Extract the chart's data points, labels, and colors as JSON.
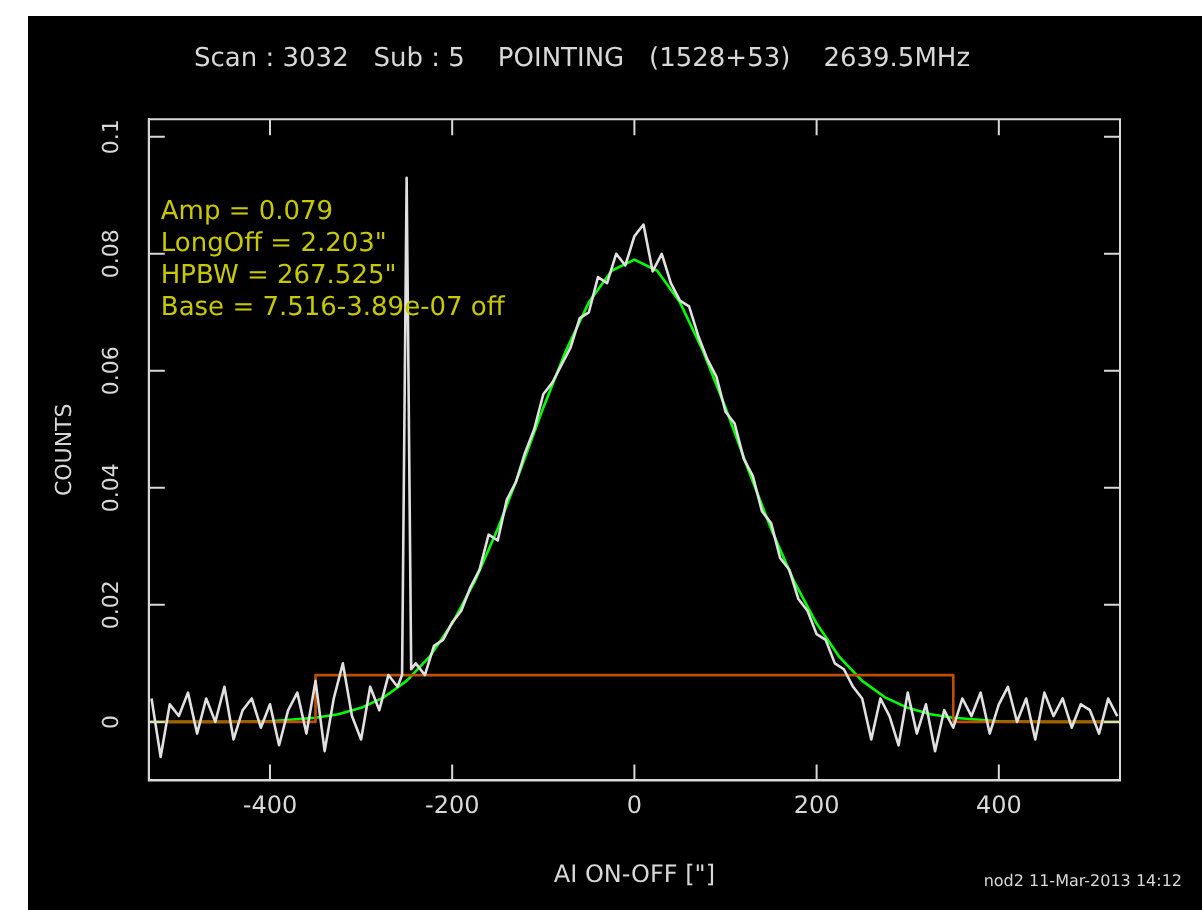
{
  "chart_data": {
    "type": "line",
    "title": "Scan : 3032   Sub : 5    POINTING   (1528+53)    2639.5MHz",
    "xlabel": "AI ON-OFF [\"]",
    "ylabel": "COUNTS",
    "annotations": [
      "Amp = 0.079",
      "LongOff = 2.203\"",
      "HPBW = 267.525\"",
      "Base = 7.516-3.89e-07 off",
      "nod2 11-Mar-2013 14:12"
    ],
    "xlim": [
      -533,
      533
    ],
    "ylim": [
      -0.01,
      0.103
    ],
    "xticks": [
      -400,
      -200,
      0,
      200,
      400
    ],
    "yticks": [
      0,
      0.02,
      0.04,
      0.06,
      0.08,
      0.1
    ],
    "grid": false,
    "legend": false,
    "marker": "none",
    "series": [
      {
        "color": "#e0e0e0",
        "x": [
          -530,
          -520,
          -510,
          -500,
          -490,
          -480,
          -470,
          -460,
          -450,
          -440,
          -430,
          -420,
          -410,
          -400,
          -390,
          -380,
          -370,
          -360,
          -350,
          -340,
          -330,
          -320,
          -310,
          -300,
          -290,
          -280,
          -270,
          -260,
          -255,
          -250,
          -245,
          -240,
          -230,
          -220,
          -210,
          -200,
          -190,
          -180,
          -170,
          -160,
          -150,
          -140,
          -130,
          -120,
          -110,
          -100,
          -90,
          -80,
          -70,
          -60,
          -50,
          -40,
          -30,
          -20,
          -10,
          0,
          10,
          20,
          30,
          40,
          50,
          60,
          70,
          80,
          90,
          100,
          110,
          120,
          130,
          140,
          150,
          160,
          170,
          180,
          190,
          200,
          210,
          220,
          230,
          240,
          250,
          260,
          270,
          280,
          290,
          300,
          310,
          320,
          330,
          340,
          350,
          360,
          370,
          380,
          390,
          400,
          410,
          420,
          430,
          440,
          450,
          460,
          470,
          480,
          490,
          500,
          510,
          520,
          530
        ],
        "values": [
          0.004,
          -0.006,
          0.003,
          0.001,
          0.005,
          -0.002,
          0.004,
          0.0,
          0.006,
          -0.003,
          0.002,
          0.004,
          -0.001,
          0.003,
          -0.004,
          0.002,
          0.005,
          -0.002,
          0.007,
          -0.005,
          0.004,
          0.01,
          0.001,
          -0.003,
          0.006,
          0.002,
          0.008,
          0.006,
          0.008,
          0.093,
          0.009,
          0.01,
          0.008,
          0.013,
          0.014,
          0.017,
          0.019,
          0.023,
          0.026,
          0.032,
          0.031,
          0.038,
          0.041,
          0.046,
          0.05,
          0.056,
          0.058,
          0.061,
          0.064,
          0.069,
          0.07,
          0.076,
          0.075,
          0.08,
          0.078,
          0.083,
          0.085,
          0.077,
          0.08,
          0.075,
          0.072,
          0.071,
          0.066,
          0.062,
          0.059,
          0.053,
          0.051,
          0.045,
          0.042,
          0.036,
          0.034,
          0.028,
          0.026,
          0.021,
          0.019,
          0.015,
          0.014,
          0.01,
          0.009,
          0.006,
          0.004,
          -0.003,
          0.004,
          0.001,
          -0.004,
          0.005,
          -0.002,
          0.003,
          -0.005,
          0.002,
          -0.001,
          0.004,
          0.001,
          0.005,
          -0.002,
          0.003,
          0.006,
          0.0,
          0.004,
          -0.003,
          0.005,
          0.001,
          0.004,
          -0.001,
          0.003,
          0.002,
          -0.002,
          0.004,
          0.001
        ]
      },
      {
        "color": "#c05000",
        "x": [
          -533,
          -350,
          -350,
          350,
          350,
          533
        ],
        "values": [
          0,
          0,
          0.008,
          0.008,
          0,
          0
        ]
      },
      {
        "color": "#00ff00",
        "x": [
          -533,
          -450,
          -400,
          -350,
          -325,
          -300,
          -275,
          -250,
          -225,
          -200,
          -175,
          -150,
          -125,
          -100,
          -75,
          -50,
          -25,
          0,
          25,
          50,
          75,
          100,
          125,
          150,
          175,
          200,
          225,
          250,
          275,
          300,
          325,
          350,
          400,
          450,
          533
        ],
        "values": [
          0,
          0,
          0.0001,
          0.0007,
          0.0013,
          0.0024,
          0.0042,
          0.007,
          0.0111,
          0.0168,
          0.0241,
          0.033,
          0.0431,
          0.0537,
          0.0635,
          0.0717,
          0.0771,
          0.079,
          0.0771,
          0.0717,
          0.0635,
          0.0537,
          0.0431,
          0.033,
          0.0241,
          0.0168,
          0.0111,
          0.007,
          0.0042,
          0.0024,
          0.0013,
          0.0007,
          0.0001,
          0,
          0
        ]
      }
    ]
  }
}
